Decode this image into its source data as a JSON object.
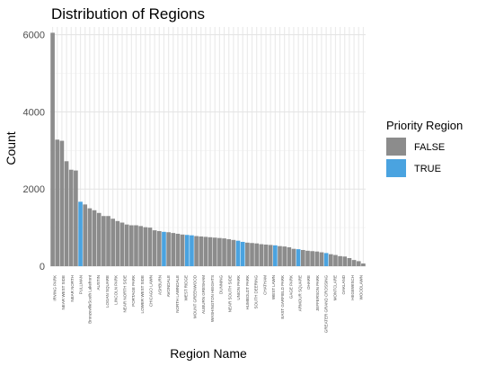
{
  "chart_data": {
    "type": "bar",
    "title": "Distribution of Regions",
    "xlabel": "Region Name",
    "ylabel": "Count",
    "ylim": [
      0,
      6200
    ],
    "yticks": [
      0,
      2000,
      4000,
      6000
    ],
    "grid": true,
    "legend": {
      "title": "Priority Region",
      "position": "right",
      "entries": [
        {
          "label": "FALSE",
          "color": "#8c8c8c"
        },
        {
          "label": "TRUE",
          "color": "#4aa3e0"
        }
      ]
    },
    "colors": {
      "FALSE": "#8c8c8c",
      "TRUE": "#4aa3e0"
    },
    "categories": [
      "IRVING PARK",
      "UPTOWN",
      "NEAR WEST SIDE",
      "WEST TOWN",
      "PULLMAN",
      "BronzevilleSouth Lakefront",
      "AUSTIN",
      "ARCHER",
      "LOGAN SQUARE",
      "WEST ENGLEWOOD",
      "LINCOLN PARK",
      "NORTH CENTER",
      "NEAR NORTH SIDE",
      "PORTAGE PARK",
      "EDGEWATER",
      "LOWER WEST SIDE",
      "SOUTH SHORE",
      "CHICAGO LAWN",
      "GARFIELD RIDGE",
      "ASHBURN",
      "AVONDALE",
      "NORTH LAWNDALE",
      "WEST RIDGE",
      "HERMOSA",
      "SOUTH CHICAGO",
      "MOUNT GREENWOOD",
      "ALBANY PARK",
      "AUBURN GRESHAM",
      "ROSELAND",
      "WASHINGTON HEIGHTS",
      "HUMBOLDT PARK",
      "DUNNING",
      "NEAR SOUTH SIDE",
      "BRIGHTON PARK",
      "LINCOLN SQUARE",
      "HYDE PARK",
      "EAST SIDE",
      "CHATHAM",
      "BEVERLY",
      "SOUTH DEERING",
      "WEST LAWN",
      "CLEARING",
      "EAST GARFIELD PARK",
      "WEST PULLMAN",
      "GAGE PARK",
      "KENWOOD",
      "ARMOUR SQUARE",
      "MCKINLEY PARK",
      "OHARE",
      "JEFFERSON PARK",
      "NORTH PARK",
      "ROGERS PARK",
      "SOUTH LAWNDALE",
      "GREATER GRAND CROSSING",
      "ARCHER HEIGHTS",
      "NEW CITY",
      "MONTCLARE",
      "WASHINGTON PARK",
      "OAKLAND",
      "CALUMET HEIGHTS",
      "HEGEWISCH",
      "WOODLAWN",
      "ENGLEWOOD",
      "BRIDGEPORT",
      "AVALON PARK",
      "BURNSIDE",
      "RIVERDALE",
      "FULLER PARK"
    ],
    "x_tick_labels": [
      "IRVING PARK",
      "NEAR WEST SIDE",
      "NEAR NORTH",
      "PULLMAN",
      "BronzevilleSouth Lakefront",
      "AUSTIN",
      "LOGAN SQUARE",
      "LINCOLN PARK",
      "NEAR NORTH SIDE",
      "PORTAGE PARK",
      "LOWER WEST SIDE",
      "CHICAGO LAWN",
      "ASHBURN",
      "AVONDALE",
      "NORTH LAWNDALE",
      "WEST RIDGE",
      "MOUNT GREENWOOD",
      "AUBURN GRESHAM",
      "WASHINGTON HEIGHTS",
      "DUNNING",
      "NEAR SOUTH SIDE",
      "UNION PARK",
      "HUMBOLDT PARK",
      "SOUTH DEERING",
      "CHATHAM",
      "WEST LAWN",
      "EAST GARFIELD PARK",
      "GAGE PARK",
      "ARMOUR SQUARE",
      "OHARE",
      "JEFFERSON PARK",
      "GREATER GRAND CROSSING",
      "MONTCLARE",
      "OAKLAND",
      "HEGEWISCH",
      "WOODLAWN"
    ],
    "values": [
      6050,
      3280,
      3250,
      2720,
      2500,
      2480,
      1670,
      1600,
      1500,
      1450,
      1380,
      1300,
      1300,
      1230,
      1170,
      1130,
      1080,
      1060,
      1060,
      1040,
      1010,
      1000,
      930,
      910,
      890,
      880,
      860,
      840,
      820,
      810,
      800,
      780,
      770,
      760,
      750,
      740,
      730,
      720,
      700,
      680,
      660,
      630,
      610,
      600,
      590,
      570,
      560,
      550,
      540,
      520,
      510,
      490,
      450,
      440,
      420,
      400,
      390,
      380,
      360,
      340,
      310,
      290,
      260,
      250,
      210,
      160,
      130,
      70
    ],
    "priority": [
      false,
      false,
      false,
      false,
      false,
      false,
      true,
      false,
      false,
      false,
      false,
      false,
      false,
      false,
      false,
      false,
      false,
      false,
      false,
      false,
      false,
      false,
      false,
      false,
      true,
      false,
      false,
      false,
      false,
      true,
      true,
      false,
      false,
      false,
      false,
      false,
      false,
      false,
      false,
      false,
      true,
      true,
      false,
      false,
      false,
      false,
      false,
      false,
      true,
      false,
      false,
      false,
      false,
      true,
      false,
      false,
      false,
      false,
      false,
      true,
      false,
      false,
      false,
      false,
      false,
      false,
      false,
      false
    ]
  }
}
